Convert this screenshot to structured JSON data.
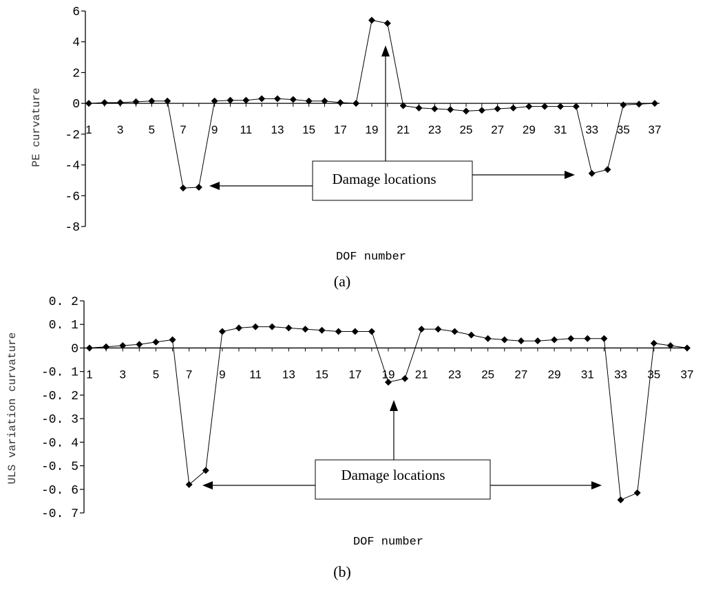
{
  "chart_data": [
    {
      "type": "line",
      "panel_label": "(a)",
      "ylabel": "PE curvature",
      "xlabel": "DOF number",
      "ylim": [
        -8,
        6
      ],
      "ytick_labels": [
        "6",
        "4",
        "2",
        "0",
        "-2",
        "-4",
        "-6",
        "-8"
      ],
      "xtick_labels": [
        "1",
        "3",
        "5",
        "7",
        "9",
        "11",
        "13",
        "15",
        "17",
        "19",
        "21",
        "23",
        "25",
        "27",
        "29",
        "31",
        "33",
        "35",
        "37"
      ],
      "annotation": "Damage locations",
      "marker_color": "#000000",
      "series": [
        {
          "x": [
            1,
            2,
            3,
            4,
            5,
            6,
            7,
            8,
            9,
            10,
            11,
            12,
            13,
            14,
            15,
            16,
            17,
            18,
            19,
            20,
            21,
            22,
            23,
            24,
            25,
            26,
            27,
            28,
            29,
            30,
            31,
            32,
            33,
            34,
            35,
            36,
            37
          ],
          "values": [
            0,
            0.05,
            0.05,
            0.1,
            0.15,
            0.15,
            -5.5,
            -5.45,
            0.15,
            0.2,
            0.2,
            0.3,
            0.3,
            0.25,
            0.15,
            0.15,
            0.05,
            0,
            5.4,
            5.2,
            -0.15,
            -0.3,
            -0.35,
            -0.4,
            -0.5,
            -0.45,
            -0.35,
            -0.3,
            -0.2,
            -0.2,
            -0.2,
            -0.2,
            -4.55,
            -4.3,
            -0.1,
            -0.05,
            0
          ]
        }
      ]
    },
    {
      "type": "line",
      "panel_label": "(b)",
      "ylabel": "ULS variation curvature",
      "xlabel": "DOF number",
      "ylim": [
        -0.7,
        0.2
      ],
      "ytick_labels": [
        "0. 2",
        "0. 1",
        "0",
        "-0. 1",
        "-0. 2",
        "-0. 3",
        "-0. 4",
        "-0. 5",
        "-0. 6",
        "-0. 7"
      ],
      "xtick_labels": [
        "1",
        "3",
        "5",
        "7",
        "9",
        "11",
        "13",
        "15",
        "17",
        "19",
        "21",
        "23",
        "25",
        "27",
        "29",
        "31",
        "33",
        "35",
        "37"
      ],
      "annotation": "Damage locations",
      "marker_color": "#000000",
      "series": [
        {
          "x": [
            1,
            2,
            3,
            4,
            5,
            6,
            7,
            8,
            9,
            10,
            11,
            12,
            13,
            14,
            15,
            16,
            17,
            18,
            19,
            20,
            21,
            22,
            23,
            24,
            25,
            26,
            27,
            28,
            29,
            30,
            31,
            32,
            33,
            34,
            35,
            36,
            37
          ],
          "values": [
            0,
            0.005,
            0.01,
            0.015,
            0.025,
            0.035,
            -0.58,
            -0.52,
            0.07,
            0.085,
            0.09,
            0.09,
            0.085,
            0.08,
            0.075,
            0.07,
            0.07,
            0.07,
            -0.145,
            -0.13,
            0.08,
            0.08,
            0.07,
            0.055,
            0.04,
            0.035,
            0.03,
            0.03,
            0.035,
            0.04,
            0.04,
            0.04,
            -0.645,
            -0.615,
            0.02,
            0.01,
            0
          ]
        }
      ]
    }
  ]
}
